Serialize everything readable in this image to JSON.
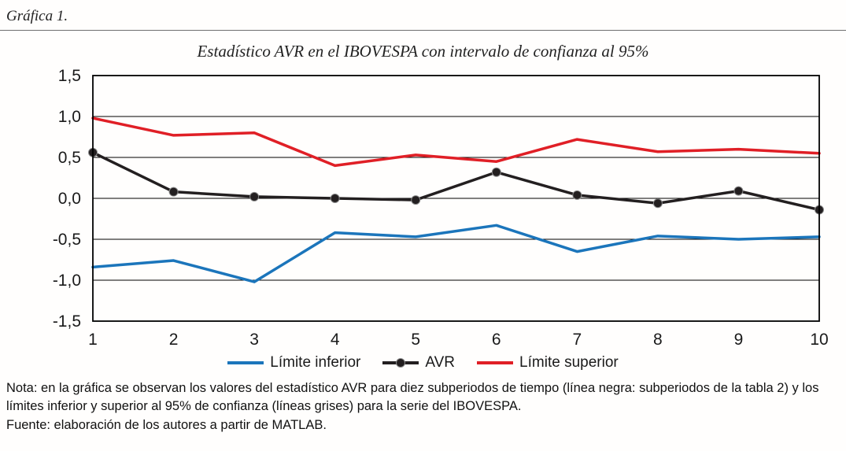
{
  "page": {
    "figure_label": "Gráfica 1.",
    "note": "Nota: en la gráfica se observan los valores del estadístico AVR para diez subperiodos de tiempo (línea negra:  subperiodos de la tabla 2) y los límites inferior y superior al 95% de confianza (líneas grises) para la serie del IBOVESPA.",
    "source": "Fuente: elaboración de los autores a partir de MATLAB."
  },
  "chart_data": {
    "type": "line",
    "title": "Estadístico AVR en el IBOVESPA con intervalo de confianza al 95%",
    "x": [
      1,
      2,
      3,
      4,
      5,
      6,
      7,
      8,
      9,
      10
    ],
    "series": [
      {
        "name": "Límite inferior",
        "color": "#1b75bb",
        "marker": "none",
        "values": [
          -0.84,
          -0.76,
          -1.02,
          -0.42,
          -0.47,
          -0.33,
          -0.65,
          -0.46,
          -0.5,
          -0.47
        ]
      },
      {
        "name": "AVR",
        "color": "#231f20",
        "marker": "circle",
        "values": [
          0.56,
          0.08,
          0.02,
          0.0,
          -0.02,
          0.32,
          0.04,
          -0.06,
          0.09,
          -0.14
        ]
      },
      {
        "name": "Límite superior",
        "color": "#e01f26",
        "marker": "none",
        "values": [
          0.98,
          0.77,
          0.8,
          0.4,
          0.53,
          0.45,
          0.72,
          0.57,
          0.6,
          0.55
        ]
      }
    ],
    "ylim": [
      -1.5,
      1.5
    ],
    "ytick_step": 0.5,
    "ytick_labels": [
      "1,5",
      "1,0",
      "0,5",
      "0,0",
      "-0,5",
      "-1,0",
      "-1,5"
    ],
    "xlabel": "",
    "ylabel": "",
    "grid": true,
    "legend_position": "bottom"
  }
}
